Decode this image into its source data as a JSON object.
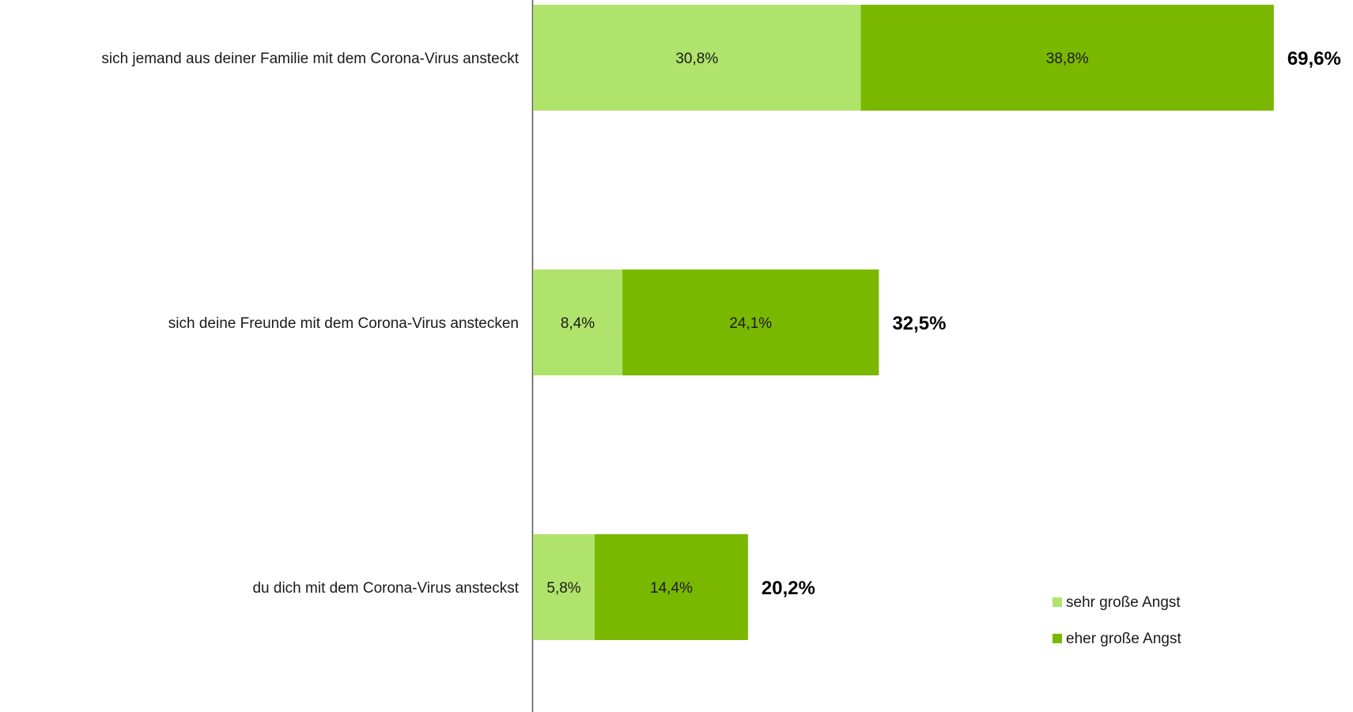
{
  "chart_data": {
    "type": "bar",
    "orientation": "horizontal",
    "stacked": true,
    "categories": [
      "sich jemand aus deiner Familie mit dem Corona-Virus ansteckt",
      "sich deine Freunde mit dem Corona-Virus anstecken",
      "du dich mit dem Corona-Virus ansteckst"
    ],
    "series": [
      {
        "name": "sehr große Angst",
        "color": "#b0e36b",
        "values": [
          30.8,
          8.4,
          5.8
        ],
        "labels": [
          "30,8%",
          "8,4%",
          "5,8%"
        ]
      },
      {
        "name": "eher große Angst",
        "color": "#7ab800",
        "values": [
          38.8,
          24.1,
          14.4
        ],
        "labels": [
          "38,8%",
          "24,1%",
          "14,4%"
        ]
      }
    ],
    "totals": [
      69.6,
      32.5,
      20.2
    ],
    "total_labels": [
      "69,6%",
      "32,5%",
      "20,2%"
    ],
    "xlim": [
      0,
      76
    ],
    "grid": false,
    "legend_position": "bottom-right",
    "title": "",
    "xlabel": "",
    "ylabel": ""
  }
}
